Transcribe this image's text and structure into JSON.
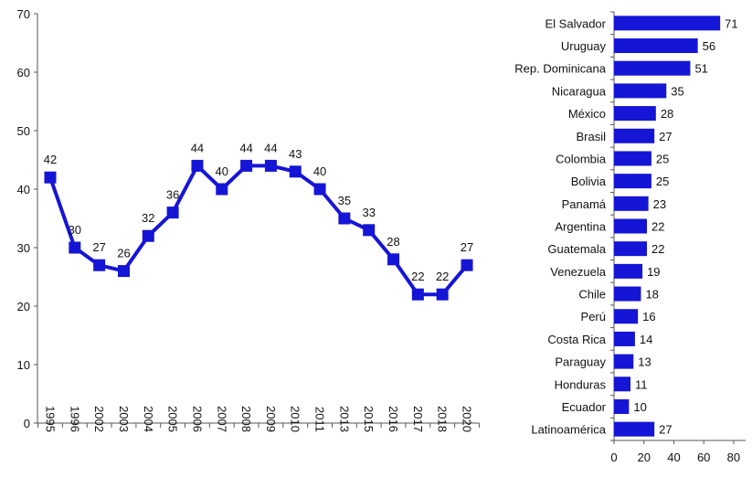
{
  "colors": {
    "series": "#1515d6",
    "axis": "#555555",
    "text": "#111111"
  },
  "chart_data": [
    {
      "type": "line",
      "x": [
        "1995",
        "1996",
        "2002",
        "2003",
        "2004",
        "2005",
        "2006",
        "2007",
        "2008",
        "2009",
        "2010",
        "2011",
        "2013",
        "2015",
        "2016",
        "2017",
        "2018",
        "2020"
      ],
      "values": [
        42,
        30,
        27,
        26,
        32,
        36,
        44,
        40,
        44,
        44,
        43,
        40,
        35,
        33,
        28,
        22,
        22,
        27
      ],
      "data_labels": [
        "42",
        "30",
        "27",
        "26",
        "32",
        "36",
        "44",
        "40",
        "44",
        "44",
        "43",
        "40",
        "35",
        "33",
        "28",
        "22",
        "22",
        "27"
      ],
      "ylim": [
        0,
        70
      ],
      "yticks": [
        "0",
        "10",
        "20",
        "30",
        "40",
        "50",
        "60",
        "70"
      ],
      "grid": false,
      "marker": "square"
    },
    {
      "type": "bar",
      "orientation": "horizontal",
      "categories": [
        "El Salvador",
        "Uruguay",
        "Rep. Dominicana",
        "Nicaragua",
        "México",
        "Brasil",
        "Colombia",
        "Bolivia",
        "Panamá",
        "Argentina",
        "Guatemala",
        "Venezuela",
        "Chile",
        "Perú",
        "Costa Rica",
        "Paraguay",
        "Honduras",
        "Ecuador",
        "Latinoamérica"
      ],
      "values": [
        71,
        56,
        51,
        35,
        28,
        27,
        25,
        25,
        23,
        22,
        22,
        19,
        18,
        16,
        14,
        13,
        11,
        10,
        27
      ],
      "data_labels": [
        "71",
        "56",
        "51",
        "35",
        "28",
        "27",
        "25",
        "25",
        "23",
        "22",
        "22",
        "19",
        "18",
        "16",
        "14",
        "13",
        "11",
        "10",
        "27"
      ],
      "xlim": [
        0,
        88
      ],
      "xticks": [
        "0",
        "20",
        "40",
        "60",
        "80"
      ],
      "grid": false
    }
  ]
}
